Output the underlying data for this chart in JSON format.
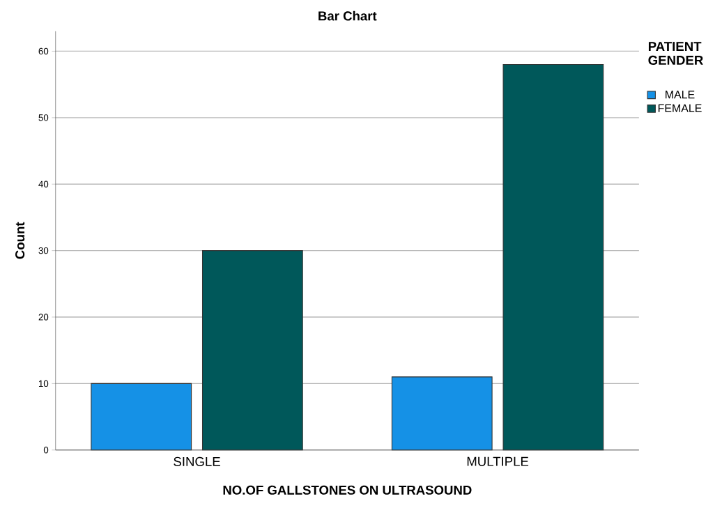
{
  "chart_data": {
    "type": "bar",
    "title": "Bar Chart",
    "xlabel": "NO.OF GALLSTONES ON ULTRASOUND",
    "ylabel": "Count",
    "legend_title": "PATIENT GENDER",
    "categories": [
      "SINGLE",
      "MULTIPLE"
    ],
    "series": [
      {
        "name": "MALE",
        "color": "#1591e6",
        "values": [
          10,
          11
        ]
      },
      {
        "name": "FEMALE",
        "color": "#00585a",
        "values": [
          30,
          58
        ]
      }
    ],
    "ylim": [
      0,
      63
    ],
    "yticks": [
      0,
      10,
      20,
      30,
      40,
      50,
      60
    ],
    "grid": "y",
    "legend": "top right"
  }
}
